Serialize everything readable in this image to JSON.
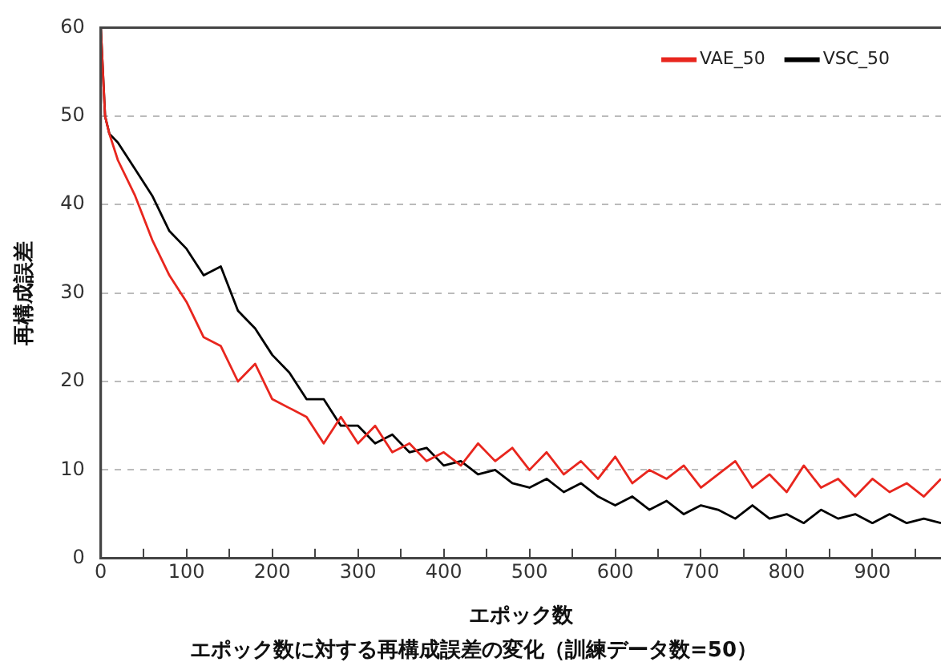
{
  "chart_data": {
    "type": "line",
    "title": "エポック数に対する再構成誤差の変化（訓練データ数=50）",
    "xlabel": "エポック数",
    "ylabel": "再構成誤差",
    "x": [
      0,
      5,
      10,
      20,
      40,
      60,
      80,
      100,
      120,
      140,
      160,
      180,
      200,
      220,
      240,
      260,
      280,
      300,
      320,
      340,
      360,
      380,
      400,
      420,
      440,
      460,
      480,
      500,
      520,
      540,
      560,
      580,
      600,
      620,
      640,
      660,
      680,
      700,
      720,
      740,
      760,
      780,
      800,
      820,
      840,
      860,
      880,
      900,
      920,
      940,
      960,
      980
    ],
    "series": [
      {
        "name": "VAE_50",
        "color": "#e8261e",
        "values": [
          60,
          50,
          48,
          45,
          41,
          36,
          32,
          29,
          25,
          24,
          20,
          22,
          18,
          17,
          16,
          13,
          16,
          13,
          15,
          12,
          13,
          11,
          12,
          10.5,
          13,
          11,
          12.5,
          10,
          12,
          9.5,
          11,
          9,
          11.5,
          8.5,
          10,
          9,
          10.5,
          8,
          9.5,
          11,
          8,
          9.5,
          7.5,
          10.5,
          8,
          9,
          7,
          9,
          7.5,
          8.5,
          7,
          9
        ]
      },
      {
        "name": "VSC_50",
        "color": "#000000",
        "values": [
          60,
          50,
          48,
          47,
          44,
          41,
          37,
          35,
          32,
          33,
          28,
          26,
          23,
          21,
          18,
          18,
          15,
          15,
          13,
          14,
          12,
          12.5,
          10.5,
          11,
          9.5,
          10,
          8.5,
          8,
          9,
          7.5,
          8.5,
          7,
          6,
          7,
          5.5,
          6.5,
          5,
          6,
          5.5,
          4.5,
          6,
          4.5,
          5,
          4,
          5.5,
          4.5,
          5,
          4,
          5,
          4,
          4.5,
          4
        ]
      }
    ],
    "xlim": [
      0,
      980
    ],
    "xticks": [
      0,
      {
        "value": 50,
        "label": null
      },
      100,
      {
        "value": 150,
        "label": null
      },
      200,
      {
        "value": 250,
        "label": null
      },
      300,
      {
        "value": 350,
        "label": null
      },
      400,
      {
        "value": 450,
        "label": null
      },
      500,
      {
        "value": 550,
        "label": null
      },
      600,
      {
        "value": 650,
        "label": null
      },
      700,
      {
        "value": 750,
        "label": null
      },
      800,
      {
        "value": 850,
        "label": null
      },
      900,
      {
        "value": 950,
        "label": null
      }
    ],
    "ylim": [
      0,
      60
    ],
    "yticks": [
      0,
      10,
      20,
      30,
      40,
      50,
      60
    ],
    "grid": "y",
    "legend": "top right",
    "marker": "none",
    "line_style": "solid"
  }
}
